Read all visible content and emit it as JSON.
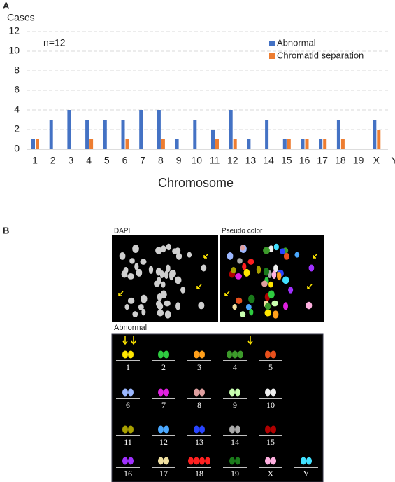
{
  "panel_a": "A",
  "chart_data": {
    "type": "bar",
    "y_label": "Cases",
    "x_label": "Chromosome",
    "annotation": "n=12",
    "categories": [
      "1",
      "2",
      "3",
      "4",
      "5",
      "6",
      "7",
      "8",
      "9",
      "10",
      "11",
      "12",
      "13",
      "14",
      "15",
      "16",
      "17",
      "18",
      "19",
      "X",
      "Y"
    ],
    "series": [
      {
        "name": "Abnormal",
        "color": "#4472c4",
        "values": [
          1,
          3,
          4,
          3,
          3,
          3,
          4,
          4,
          1,
          3,
          2,
          4,
          1,
          3,
          1,
          1,
          1,
          3,
          0,
          3,
          0
        ]
      },
      {
        "name": "Chromatid separation",
        "color": "#ed7d31",
        "values": [
          1,
          0,
          0,
          1,
          0,
          1,
          0,
          1,
          0,
          0,
          1,
          1,
          0,
          0,
          1,
          1,
          1,
          1,
          0,
          2,
          0
        ]
      }
    ],
    "ylim": [
      0,
      12
    ],
    "yticks": [
      0,
      2,
      4,
      6,
      8,
      10,
      12
    ],
    "grid": true,
    "legend": "upper right"
  },
  "panel_b": {
    "label": "B",
    "images": [
      "DAPI",
      "Pseudo color"
    ],
    "karyotype_title": "Abnormal",
    "chromosomes": [
      "1",
      "2",
      "3",
      "4",
      "5",
      "6",
      "7",
      "8",
      "9",
      "10",
      "11",
      "12",
      "13",
      "14",
      "15",
      "16",
      "17",
      "18",
      "19",
      "X",
      "Y"
    ]
  }
}
